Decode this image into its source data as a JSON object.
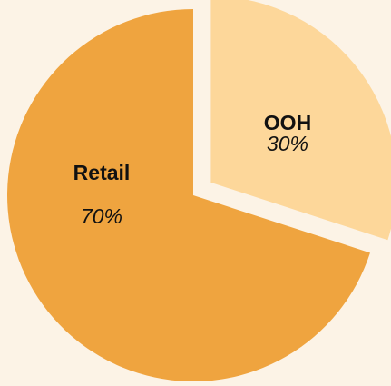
{
  "chart_data": {
    "type": "pie",
    "categories": [
      "OOH",
      "Retail"
    ],
    "values": [
      30,
      70
    ],
    "value_labels": [
      "30%",
      "70%"
    ],
    "colors": [
      "#fdd79a",
      "#efa43f"
    ],
    "exploded": [
      true,
      false
    ]
  }
}
